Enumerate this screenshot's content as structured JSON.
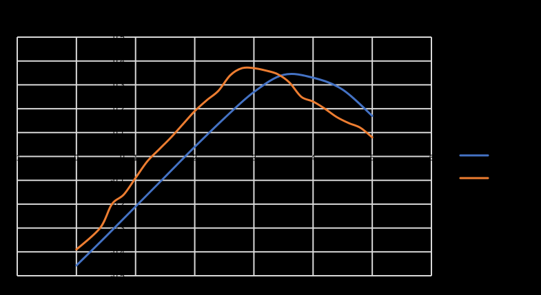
{
  "chart_data": {
    "type": "line",
    "title": "",
    "xlabel": "",
    "ylabel": "",
    "xlim": [
      -1,
      6
    ],
    "ylim": [
      -0.5,
      0.5
    ],
    "x_ticks": [
      -1,
      0,
      1,
      2,
      3,
      4,
      5,
      6
    ],
    "y_ticks": [
      -0.5,
      -0.4,
      -0.3,
      -0.2,
      -0.1,
      0,
      0.1,
      0.2,
      0.3,
      0.4,
      0.5
    ],
    "grid": true,
    "legend_position": "right",
    "series": [
      {
        "color": "#4472c4",
        "x": [
          0,
          0.5,
          1,
          1.5,
          2,
          2.5,
          3,
          3.5,
          4,
          4.5,
          5
        ],
        "y": [
          -0.457,
          -0.335,
          -0.21,
          -0.085,
          0.04,
          0.16,
          0.27,
          0.342,
          0.33,
          0.28,
          0.17
        ]
      },
      {
        "color": "#ed7d31",
        "x": [
          0,
          0.4,
          0.6,
          0.8,
          1.0,
          1.2,
          1.4,
          1.6,
          1.8,
          2.0,
          2.2,
          2.4,
          2.6,
          2.8,
          3.0,
          3.2,
          3.4,
          3.6,
          3.8,
          4.0,
          4.2,
          4.4,
          4.6,
          4.8,
          5.0
        ],
        "y": [
          -0.39,
          -0.3,
          -0.2,
          -0.16,
          -0.09,
          -0.02,
          0.03,
          0.08,
          0.135,
          0.19,
          0.235,
          0.275,
          0.34,
          0.37,
          0.37,
          0.36,
          0.345,
          0.31,
          0.25,
          0.23,
          0.2,
          0.165,
          0.14,
          0.12,
          0.08
        ]
      }
    ]
  }
}
